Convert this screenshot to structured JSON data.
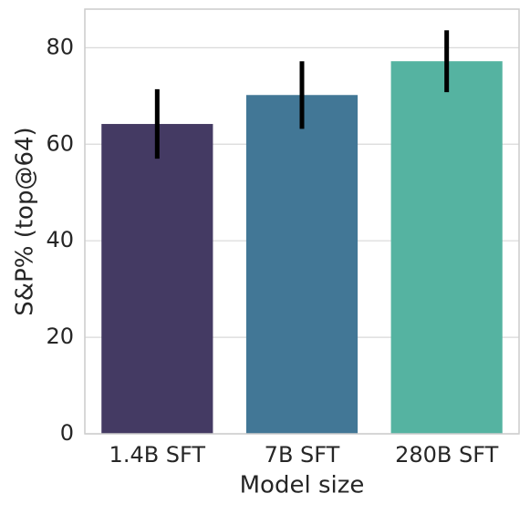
{
  "chart_data": {
    "type": "bar",
    "xlabel": "Model size",
    "ylabel": "S&P% (top@64)",
    "categories": [
      "1.4B SFT",
      "7B SFT",
      "280B SFT"
    ],
    "values": [
      64.2,
      70.2,
      77.2
    ],
    "errors": [
      7.2,
      7.0,
      6.4
    ],
    "colors": [
      "#443a63",
      "#427796",
      "#55b3a1"
    ],
    "error_color": "#000000",
    "ylim": [
      0,
      88
    ],
    "yticks": [
      0,
      20,
      40,
      60,
      80
    ],
    "grid": true
  }
}
